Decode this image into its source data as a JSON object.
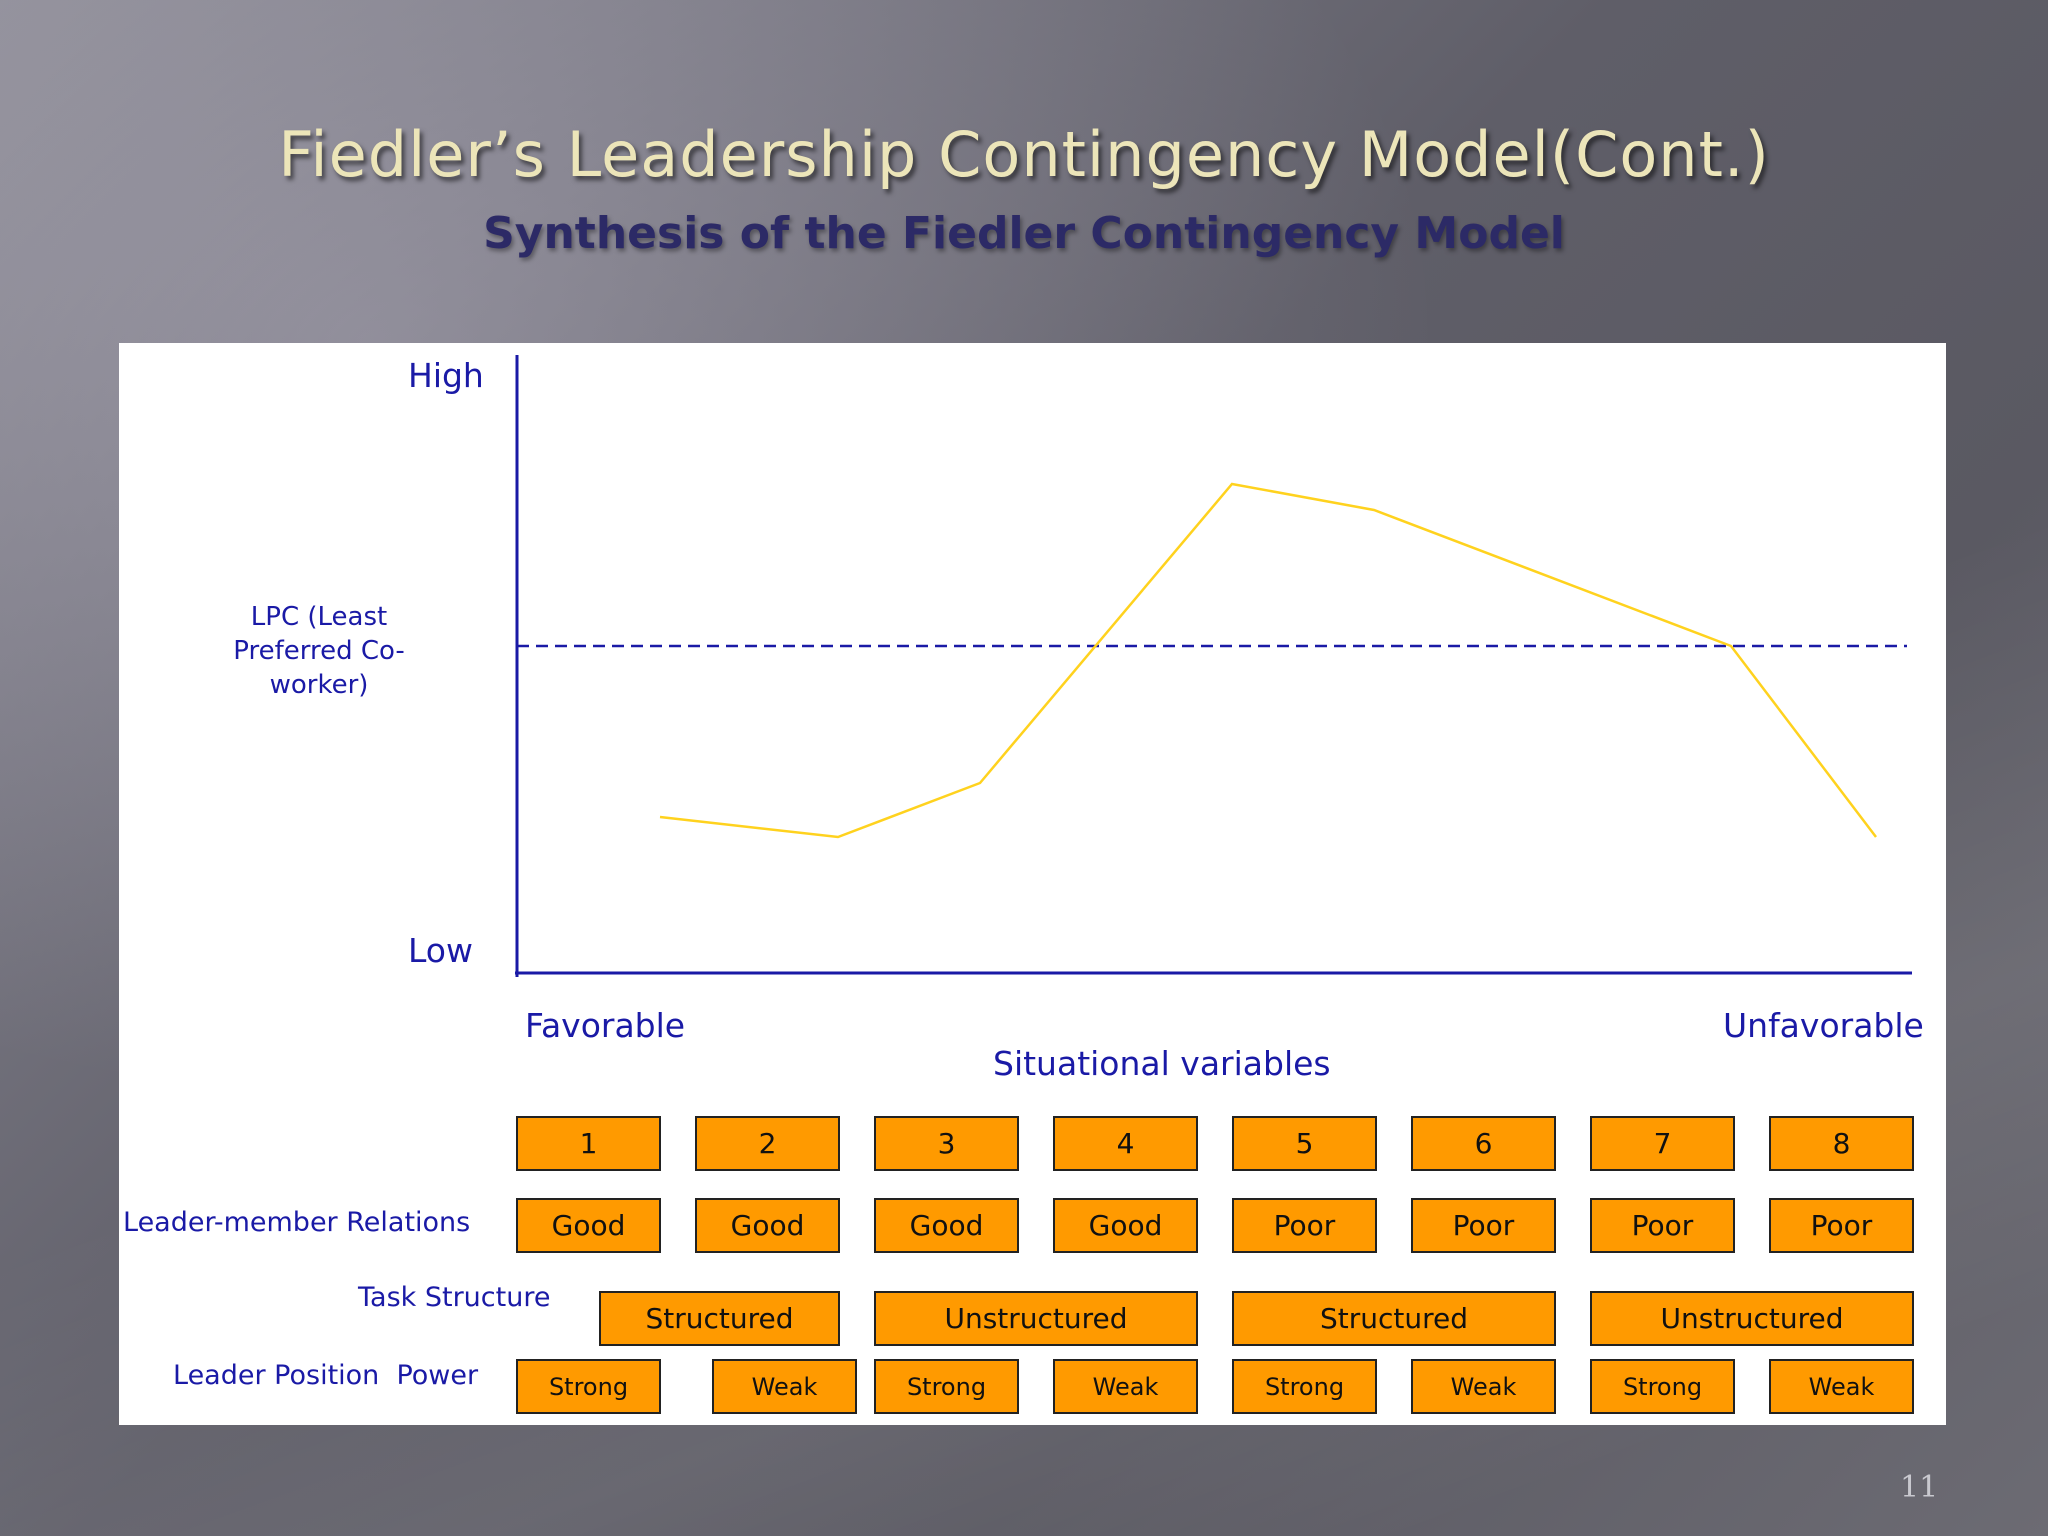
{
  "slide": {
    "title": "Fiedler’s Leadership Contingency Model(Cont.)",
    "subtitle": "Synthesis of the Fiedler Contingency Model",
    "page_number": "11"
  },
  "diagram": {
    "y_high_label": "High",
    "y_low_label": "Low",
    "y_axis_label": "LPC (Least Preferred Co-worker)",
    "x_left_label": "Favorable",
    "x_right_label": "Unfavorable",
    "x_axis_label": "Situational variables",
    "line_color": "#ffd21e",
    "axis_color": "#1a1aa6",
    "box_color": "#ff9a00",
    "octants": [
      "1",
      "2",
      "3",
      "4",
      "5",
      "6",
      "7",
      "8"
    ],
    "row_labels": {
      "relations": "Leader-member Relations",
      "task": "Task Structure",
      "power": "Leader Position  Power"
    },
    "relations": [
      "Good",
      "Good",
      "Good",
      "Good",
      "Poor",
      "Poor",
      "Poor",
      "Poor"
    ],
    "task": [
      "Structured",
      "Unstructured",
      "Structured",
      "Unstructured"
    ],
    "power": [
      "Strong",
      "Weak",
      "Strong",
      "Weak",
      "Strong",
      "Weak",
      "Strong",
      "Weak"
    ]
  }
}
